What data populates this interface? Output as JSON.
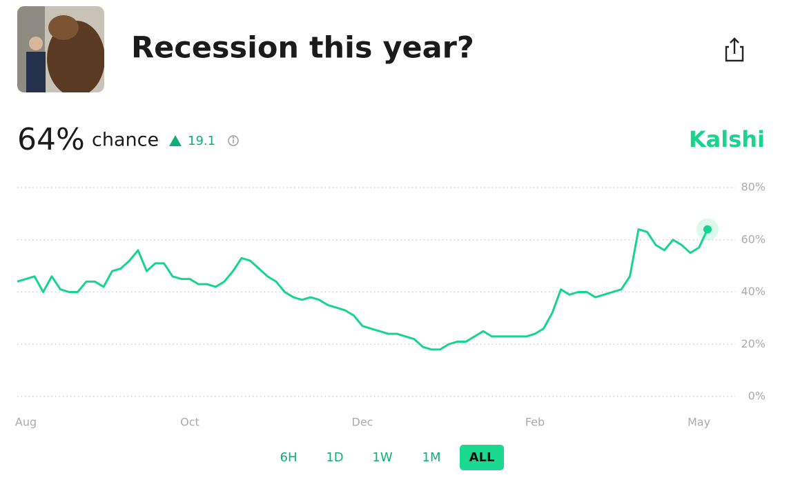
{
  "header": {
    "title": "Recession this year?"
  },
  "summary": {
    "probability": "64%",
    "probability_caption": "chance",
    "change": "19.1",
    "brand": "Kalshi"
  },
  "chart_data": {
    "type": "line",
    "categories": [
      null,
      "Aug",
      null,
      null,
      null,
      null,
      null,
      null,
      null,
      null,
      null,
      null,
      null,
      null,
      null,
      null,
      null,
      null,
      null,
      null,
      "Oct",
      null,
      null,
      null,
      null,
      null,
      null,
      null,
      null,
      null,
      null,
      null,
      null,
      null,
      null,
      null,
      null,
      null,
      null,
      null,
      "Dec",
      null,
      null,
      null,
      null,
      null,
      null,
      null,
      null,
      null,
      null,
      null,
      null,
      null,
      null,
      null,
      null,
      null,
      null,
      null,
      "Feb",
      null,
      null,
      null,
      null,
      null,
      null,
      null,
      null,
      null,
      null,
      null,
      null,
      null,
      null,
      null,
      null,
      null,
      null,
      "May",
      null
    ],
    "series": [
      {
        "color": "#16d48e",
        "values": [
          44,
          45,
          46,
          40,
          46,
          41,
          40,
          40,
          44,
          44,
          42,
          48,
          49,
          52,
          56,
          48,
          51,
          51,
          46,
          45,
          45,
          43,
          43,
          42,
          44,
          48,
          53,
          52,
          49,
          46,
          44,
          40,
          38,
          37,
          38,
          37,
          35,
          34,
          33,
          31,
          27,
          26,
          25,
          24,
          24,
          23,
          22,
          19,
          18,
          18,
          20,
          21,
          21,
          23,
          25,
          23,
          23,
          23,
          23,
          23,
          24,
          26,
          32,
          41,
          39,
          40,
          40,
          38,
          39,
          40,
          41,
          46,
          64,
          63,
          58,
          56,
          60,
          58,
          55,
          57,
          64
        ]
      }
    ],
    "ylim": [
      0,
      80
    ],
    "yticks": [
      {
        "value": 0,
        "label": "0%"
      },
      {
        "value": 20,
        "label": "20%"
      },
      {
        "value": 40,
        "label": "40%"
      },
      {
        "value": 60,
        "label": "60%"
      },
      {
        "value": 80,
        "label": "80%"
      }
    ],
    "grid": true
  },
  "range_buttons": [
    "6H",
    "1D",
    "1W",
    "1M",
    "ALL"
  ]
}
